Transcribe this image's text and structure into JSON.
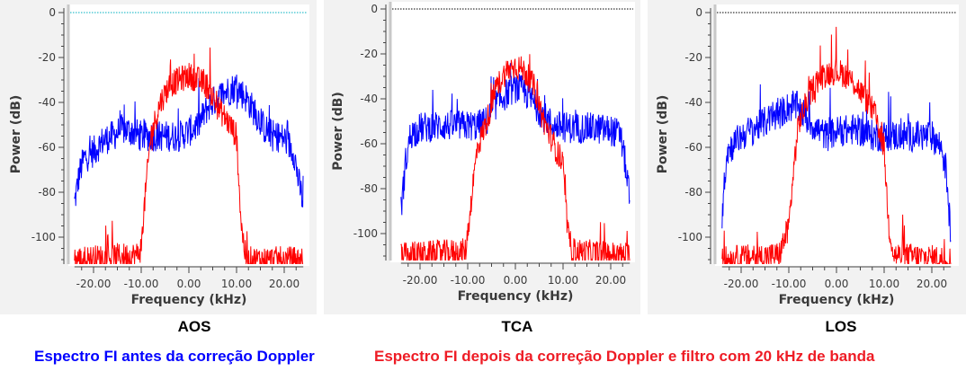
{
  "colors": {
    "before": "#0000ff",
    "after": "#ff0000",
    "ref_aos": "#00b0c0",
    "ref_other": "#000000",
    "panel_bg": "#f2f2f2"
  },
  "captions": {
    "before": "Espectro FI antes da correção Doppler",
    "after": "Espectro FI depois da correção Doppler e filtro com 20 kHz de banda"
  },
  "chart_data": [
    {
      "type": "line",
      "title": "AOS",
      "xlabel": "Frequency (kHz)",
      "ylabel": "Power (dB)",
      "xlim": [
        -24,
        24
      ],
      "ylim": [
        -112,
        2
      ],
      "xticks": [
        "-20.00",
        "-10.00",
        "0.00",
        "10.00",
        "20.00"
      ],
      "yticks": [
        "0",
        "-20",
        "-40",
        "-60",
        "-80",
        "-100"
      ],
      "grid": false,
      "reference_line_db": 0,
      "series": [
        {
          "name": "Espectro FI antes da correção Doppler",
          "x": [
            -24,
            -23,
            -22,
            -20,
            -18,
            -16,
            -14,
            -12,
            -10,
            -8,
            -6,
            -4,
            -2,
            0,
            2,
            4,
            6,
            8,
            10,
            12,
            14,
            16,
            18,
            20,
            22,
            23,
            24
          ],
          "values": [
            -85,
            -72,
            -65,
            -62,
            -57,
            -55,
            -52,
            -53,
            -55,
            -55,
            -55,
            -55,
            -55,
            -53,
            -50,
            -42,
            -38,
            -35,
            -33,
            -38,
            -45,
            -52,
            -55,
            -56,
            -62,
            -75,
            -85
          ]
        },
        {
          "name": "Espectro FI depois da correção Doppler e filtro com 20 kHz de banda",
          "x": [
            -24,
            -11,
            -10,
            -9.5,
            -9,
            -8,
            -6,
            -4,
            -2,
            0,
            2,
            4,
            6,
            8,
            10,
            10.5,
            11,
            12,
            24
          ],
          "values": [
            -110,
            -108,
            -105,
            -90,
            -78,
            -55,
            -40,
            -32,
            -30,
            -28,
            -30,
            -33,
            -42,
            -48,
            -55,
            -75,
            -95,
            -110,
            -110
          ]
        }
      ]
    },
    {
      "type": "line",
      "title": "TCA",
      "xlabel": "Frequency (kHz)",
      "ylabel": "Power (dB)",
      "xlim": [
        -24,
        24
      ],
      "ylim": [
        -112,
        2
      ],
      "xticks": [
        "-20.00",
        "-10.00",
        "0.00",
        "10.00",
        "20.00"
      ],
      "yticks": [
        "0",
        "-20",
        "-40",
        "-60",
        "-80",
        "-100"
      ],
      "grid": false,
      "reference_line_db": 0,
      "series": [
        {
          "name": "Espectro FI antes da correção Doppler",
          "x": [
            -24,
            -23,
            -22,
            -20,
            -16,
            -12,
            -8,
            -6,
            -4,
            -2,
            0,
            2,
            4,
            6,
            8,
            12,
            16,
            20,
            22,
            23,
            24
          ],
          "values": [
            -90,
            -68,
            -56,
            -53,
            -52,
            -52,
            -52,
            -50,
            -42,
            -38,
            -35,
            -37,
            -42,
            -48,
            -52,
            -53,
            -53,
            -54,
            -56,
            -68,
            -85
          ]
        },
        {
          "name": "Espectro FI depois da correção Doppler e filtro com 20 kHz de banda",
          "x": [
            -24,
            -10.5,
            -10,
            -9,
            -8,
            -6,
            -4,
            -2,
            0,
            2,
            4,
            6,
            8,
            10,
            10.5,
            11,
            12,
            24
          ],
          "values": [
            -110,
            -108,
            -100,
            -80,
            -62,
            -50,
            -35,
            -28,
            -25,
            -28,
            -35,
            -50,
            -60,
            -70,
            -85,
            -100,
            -108,
            -110
          ]
        }
      ]
    },
    {
      "type": "line",
      "title": "LOS",
      "xlabel": "Frequency (kHz)",
      "ylabel": "Power (dB)",
      "xlim": [
        -24,
        24
      ],
      "ylim": [
        -112,
        2
      ],
      "xticks": [
        "-20.00",
        "-10.00",
        "0.00",
        "10.00",
        "20.00"
      ],
      "yticks": [
        "0",
        "-20",
        "-40",
        "-60",
        "-80",
        "-100"
      ],
      "grid": false,
      "reference_line_db": 0,
      "series": [
        {
          "name": "Espectro FI antes da correção Doppler",
          "x": [
            -24,
            -23,
            -20,
            -16,
            -12,
            -10,
            -8,
            -6,
            -4,
            -2,
            0,
            4,
            8,
            12,
            16,
            20,
            22,
            23,
            24
          ],
          "values": [
            -90,
            -62,
            -55,
            -50,
            -45,
            -42,
            -42,
            -48,
            -52,
            -55,
            -53,
            -52,
            -55,
            -55,
            -55,
            -55,
            -60,
            -70,
            -100
          ]
        },
        {
          "name": "Espectro FI depois da correção Doppler e filtro com 20 kHz de banda",
          "x": [
            -24,
            -12,
            -10,
            -9,
            -8,
            -6,
            -4,
            -2,
            0,
            2,
            4,
            6,
            8,
            10,
            10.5,
            11,
            12,
            24
          ],
          "values": [
            -110,
            -108,
            -95,
            -70,
            -50,
            -38,
            -30,
            -27,
            -26,
            -28,
            -32,
            -38,
            -45,
            -60,
            -80,
            -95,
            -108,
            -110
          ]
        }
      ]
    }
  ]
}
